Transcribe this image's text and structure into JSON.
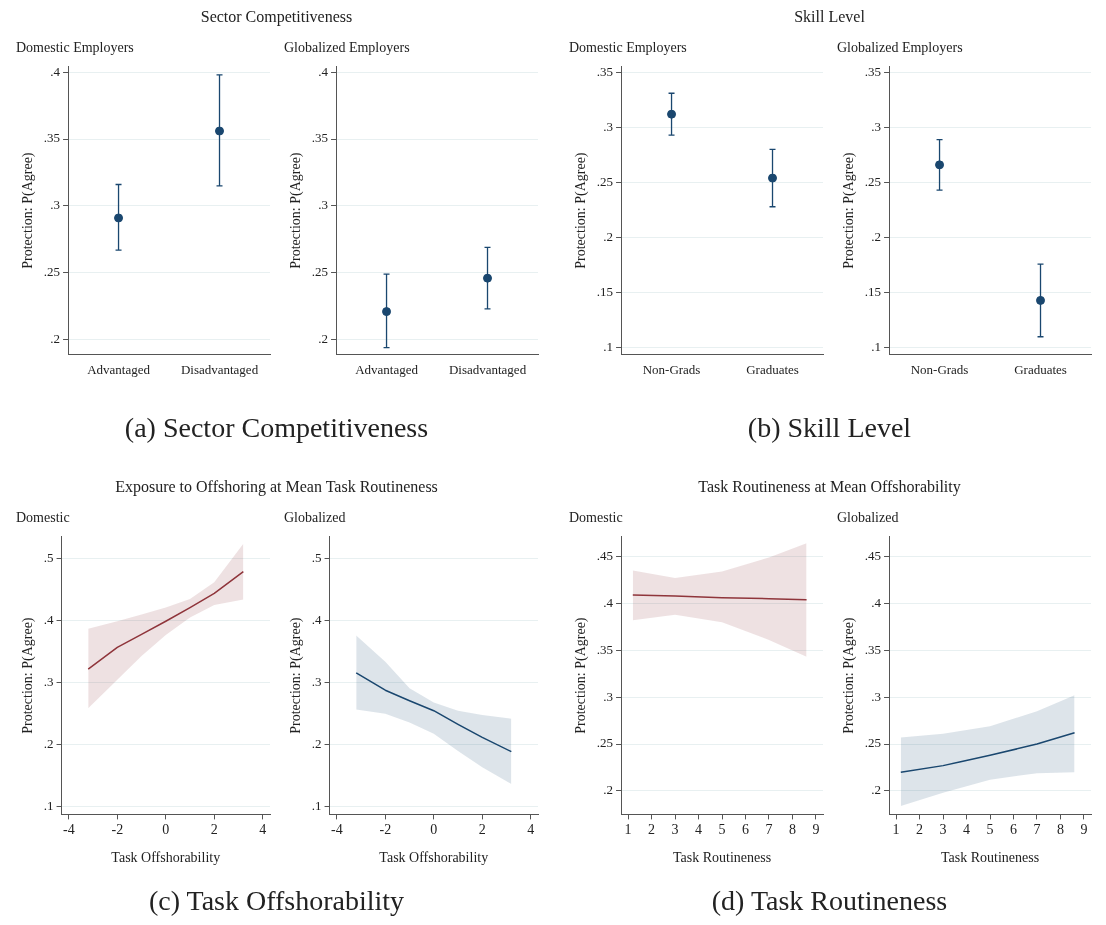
{
  "chart_data": [
    {
      "type": "scatter",
      "title": "Domestic Employers",
      "ylabel": "Protection: P(Agree)",
      "annotations": [
        "Sector Competitiveness",
        "(a) Sector Competitiveness"
      ],
      "categories": [
        "Advantaged",
        "Disadvantaged"
      ],
      "series": [
        {
          "color": "#1a476f",
          "values": [
            0.291,
            0.356
          ],
          "errors": [
            [
              0.267,
              0.316
            ],
            [
              0.315,
              0.398
            ]
          ]
        }
      ],
      "ylim": [
        0.189,
        0.404
      ],
      "yticks": [
        {
          "value": 0.2,
          "label": ".2"
        },
        {
          "value": 0.25,
          "label": ".25"
        },
        {
          "value": 0.3,
          "label": ".3"
        },
        {
          "value": 0.35,
          "label": ".35"
        },
        {
          "value": 0.4,
          "label": ".4"
        }
      ],
      "grid": "y",
      "marker": "circle"
    },
    {
      "type": "scatter",
      "title": "Globalized Employers",
      "ylabel": "Protection: P(Agree)",
      "categories": [
        "Advantaged",
        "Disadvantaged"
      ],
      "series": [
        {
          "color": "#1a476f",
          "values": [
            0.221,
            0.246
          ],
          "errors": [
            [
              0.194,
              0.249
            ],
            [
              0.223,
              0.269
            ]
          ]
        }
      ],
      "ylim": [
        0.189,
        0.404
      ],
      "yticks": [
        {
          "value": 0.2,
          "label": ".2"
        },
        {
          "value": 0.25,
          "label": ".25"
        },
        {
          "value": 0.3,
          "label": ".3"
        },
        {
          "value": 0.35,
          "label": ".35"
        },
        {
          "value": 0.4,
          "label": ".4"
        }
      ],
      "grid": "y",
      "marker": "circle"
    },
    {
      "type": "scatter",
      "title": "Domestic Employers",
      "ylabel": "Protection: P(Agree)",
      "annotations": [
        "Skill Level",
        "(b) Skill Level"
      ],
      "categories": [
        "Non-Grads",
        "Graduates"
      ],
      "series": [
        {
          "color": "#1a476f",
          "values": [
            0.312,
            0.254
          ],
          "errors": [
            [
              0.293,
              0.331
            ],
            [
              0.228,
              0.28
            ]
          ]
        }
      ],
      "ylim": [
        0.094,
        0.355
      ],
      "yticks": [
        {
          "value": 0.1,
          "label": ".1"
        },
        {
          "value": 0.15,
          "label": ".15"
        },
        {
          "value": 0.2,
          "label": ".2"
        },
        {
          "value": 0.25,
          "label": ".25"
        },
        {
          "value": 0.3,
          "label": ".3"
        },
        {
          "value": 0.35,
          "label": ".35"
        }
      ],
      "grid": "y",
      "marker": "circle"
    },
    {
      "type": "scatter",
      "title": "Globalized Employers",
      "ylabel": "Protection: P(Agree)",
      "categories": [
        "Non-Grads",
        "Graduates"
      ],
      "series": [
        {
          "color": "#1a476f",
          "values": [
            0.266,
            0.143
          ],
          "errors": [
            [
              0.243,
              0.289
            ],
            [
              0.11,
              0.176
            ]
          ]
        }
      ],
      "ylim": [
        0.094,
        0.355
      ],
      "yticks": [
        {
          "value": 0.1,
          "label": ".1"
        },
        {
          "value": 0.15,
          "label": ".15"
        },
        {
          "value": 0.2,
          "label": ".2"
        },
        {
          "value": 0.25,
          "label": ".25"
        },
        {
          "value": 0.3,
          "label": ".3"
        },
        {
          "value": 0.35,
          "label": ".35"
        }
      ],
      "grid": "y",
      "marker": "circle"
    },
    {
      "type": "line",
      "title": "Domestic",
      "xlabel": "Task Offshorability",
      "ylabel": "Protection: P(Agree)",
      "annotations": [
        "Exposure to Offshoring at Mean Task Routineness",
        "(c) Task Offshorability"
      ],
      "x": [
        -3.2,
        -2,
        -1,
        0,
        1,
        2,
        3.2
      ],
      "series": [
        {
          "color": "#90353b",
          "values": [
            0.322,
            0.357,
            0.378,
            0.399,
            0.421,
            0.444,
            0.479
          ],
          "lower": [
            0.259,
            0.305,
            0.343,
            0.377,
            0.405,
            0.425,
            0.434
          ],
          "upper": [
            0.387,
            0.399,
            0.41,
            0.421,
            0.435,
            0.462,
            0.524
          ]
        }
      ],
      "xlim": [
        -4.3,
        4.3
      ],
      "xticks": [
        -4,
        -2,
        0,
        2,
        4
      ],
      "ylim": [
        0.088,
        0.535
      ],
      "yticks": [
        {
          "value": 0.1,
          "label": ".1"
        },
        {
          "value": 0.2,
          "label": ".2"
        },
        {
          "value": 0.3,
          "label": ".3"
        },
        {
          "value": 0.4,
          "label": ".4"
        },
        {
          "value": 0.5,
          "label": ".5"
        }
      ],
      "grid": "y",
      "marker": "none"
    },
    {
      "type": "line",
      "title": "Globalized",
      "xlabel": "Task Offshorability",
      "ylabel": "Protection: P(Agree)",
      "x": [
        -3.2,
        -2,
        -1,
        0,
        1,
        2,
        3.2
      ],
      "series": [
        {
          "color": "#1a476f",
          "values": [
            0.316,
            0.288,
            0.271,
            0.255,
            0.233,
            0.212,
            0.189
          ],
          "lower": [
            0.257,
            0.25,
            0.236,
            0.218,
            0.19,
            0.164,
            0.137
          ],
          "upper": [
            0.376,
            0.334,
            0.291,
            0.268,
            0.255,
            0.248,
            0.242
          ]
        }
      ],
      "xlim": [
        -4.3,
        4.3
      ],
      "xticks": [
        -4,
        -2,
        0,
        2,
        4
      ],
      "ylim": [
        0.088,
        0.535
      ],
      "yticks": [
        {
          "value": 0.1,
          "label": ".1"
        },
        {
          "value": 0.2,
          "label": ".2"
        },
        {
          "value": 0.3,
          "label": ".3"
        },
        {
          "value": 0.4,
          "label": ".4"
        },
        {
          "value": 0.5,
          "label": ".5"
        }
      ],
      "grid": "y",
      "marker": "none"
    },
    {
      "type": "line",
      "title": "Domestic",
      "xlabel": "Task Routineness",
      "ylabel": "Protection: P(Agree)",
      "annotations": [
        "Task Routineness at Mean Offshorability",
        "(d) Task Routineness"
      ],
      "x": [
        1.2,
        3,
        5,
        7,
        8.6
      ],
      "series": [
        {
          "color": "#90353b",
          "values": [
            0.409,
            0.408,
            0.406,
            0.405,
            0.404
          ],
          "lower": [
            0.382,
            0.388,
            0.38,
            0.361,
            0.343
          ],
          "upper": [
            0.435,
            0.427,
            0.434,
            0.449,
            0.464
          ]
        }
      ],
      "xlim": [
        0.7,
        9.3
      ],
      "xticks": [
        1,
        2,
        3,
        4,
        5,
        6,
        7,
        8,
        9
      ],
      "ylim": [
        0.175,
        0.471
      ],
      "yticks": [
        {
          "value": 0.2,
          "label": ".2"
        },
        {
          "value": 0.25,
          "label": ".25"
        },
        {
          "value": 0.3,
          "label": ".3"
        },
        {
          "value": 0.35,
          "label": ".35"
        },
        {
          "value": 0.4,
          "label": ".4"
        },
        {
          "value": 0.45,
          "label": ".45"
        }
      ],
      "grid": "y",
      "marker": "none"
    },
    {
      "type": "line",
      "title": "Globalized",
      "xlabel": "Task Routineness",
      "ylabel": "Protection: P(Agree)",
      "x": [
        1.2,
        3,
        5,
        7,
        8.6
      ],
      "series": [
        {
          "color": "#1a476f",
          "values": [
            0.22,
            0.227,
            0.238,
            0.25,
            0.262
          ],
          "lower": [
            0.184,
            0.198,
            0.212,
            0.219,
            0.22
          ],
          "upper": [
            0.257,
            0.261,
            0.269,
            0.285,
            0.302
          ]
        }
      ],
      "xlim": [
        0.7,
        9.3
      ],
      "xticks": [
        1,
        2,
        3,
        4,
        5,
        6,
        7,
        8,
        9
      ],
      "ylim": [
        0.175,
        0.471
      ],
      "yticks": [
        {
          "value": 0.2,
          "label": ".2"
        },
        {
          "value": 0.25,
          "label": ".25"
        },
        {
          "value": 0.3,
          "label": ".3"
        },
        {
          "value": 0.35,
          "label": ".35"
        },
        {
          "value": 0.4,
          "label": ".4"
        },
        {
          "value": 0.45,
          "label": ".45"
        }
      ],
      "grid": "y",
      "marker": "none"
    }
  ]
}
